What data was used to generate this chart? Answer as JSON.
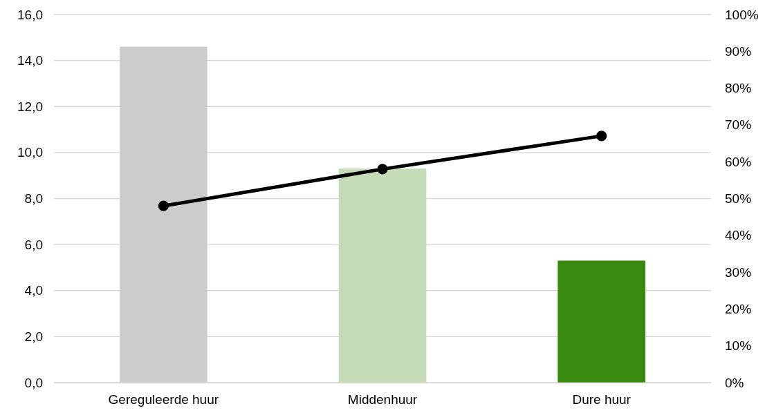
{
  "chart_data": {
    "type": "bar",
    "categories": [
      "Gereguleerde huur",
      "Middenhuur",
      "Dure huur"
    ],
    "series": [
      {
        "colors": [
          "#cccccc",
          "#c5dcb8",
          "#3a8a12"
        ],
        "values": [
          14.6,
          9.3,
          5.3
        ]
      },
      {
        "type": "line",
        "axis": "y2",
        "color": "#000000",
        "marker": "circle",
        "line_style": "solid",
        "values": [
          48,
          58,
          67
        ]
      }
    ],
    "ylim": [
      0,
      16
    ],
    "yticks": [
      {
        "value": 0,
        "label": "0,0"
      },
      {
        "value": 2,
        "label": "2,0"
      },
      {
        "value": 4,
        "label": "4,0"
      },
      {
        "value": 6,
        "label": "6,0"
      },
      {
        "value": 8,
        "label": "8,0"
      },
      {
        "value": 10,
        "label": "10,0"
      },
      {
        "value": 12,
        "label": "12,0"
      },
      {
        "value": 14,
        "label": "14,0"
      },
      {
        "value": 16,
        "label": "16,0"
      }
    ],
    "y2lim": [
      0,
      100
    ],
    "y2ticks": [
      {
        "value": 0,
        "label": "0%"
      },
      {
        "value": 10,
        "label": "10%"
      },
      {
        "value": 20,
        "label": "20%"
      },
      {
        "value": 30,
        "label": "30%"
      },
      {
        "value": 40,
        "label": "40%"
      },
      {
        "value": 50,
        "label": "50%"
      },
      {
        "value": 60,
        "label": "60%"
      },
      {
        "value": 70,
        "label": "70%"
      },
      {
        "value": 80,
        "label": "80%"
      },
      {
        "value": 90,
        "label": "90%"
      },
      {
        "value": 100,
        "label": "100%"
      }
    ],
    "grid": "y"
  }
}
